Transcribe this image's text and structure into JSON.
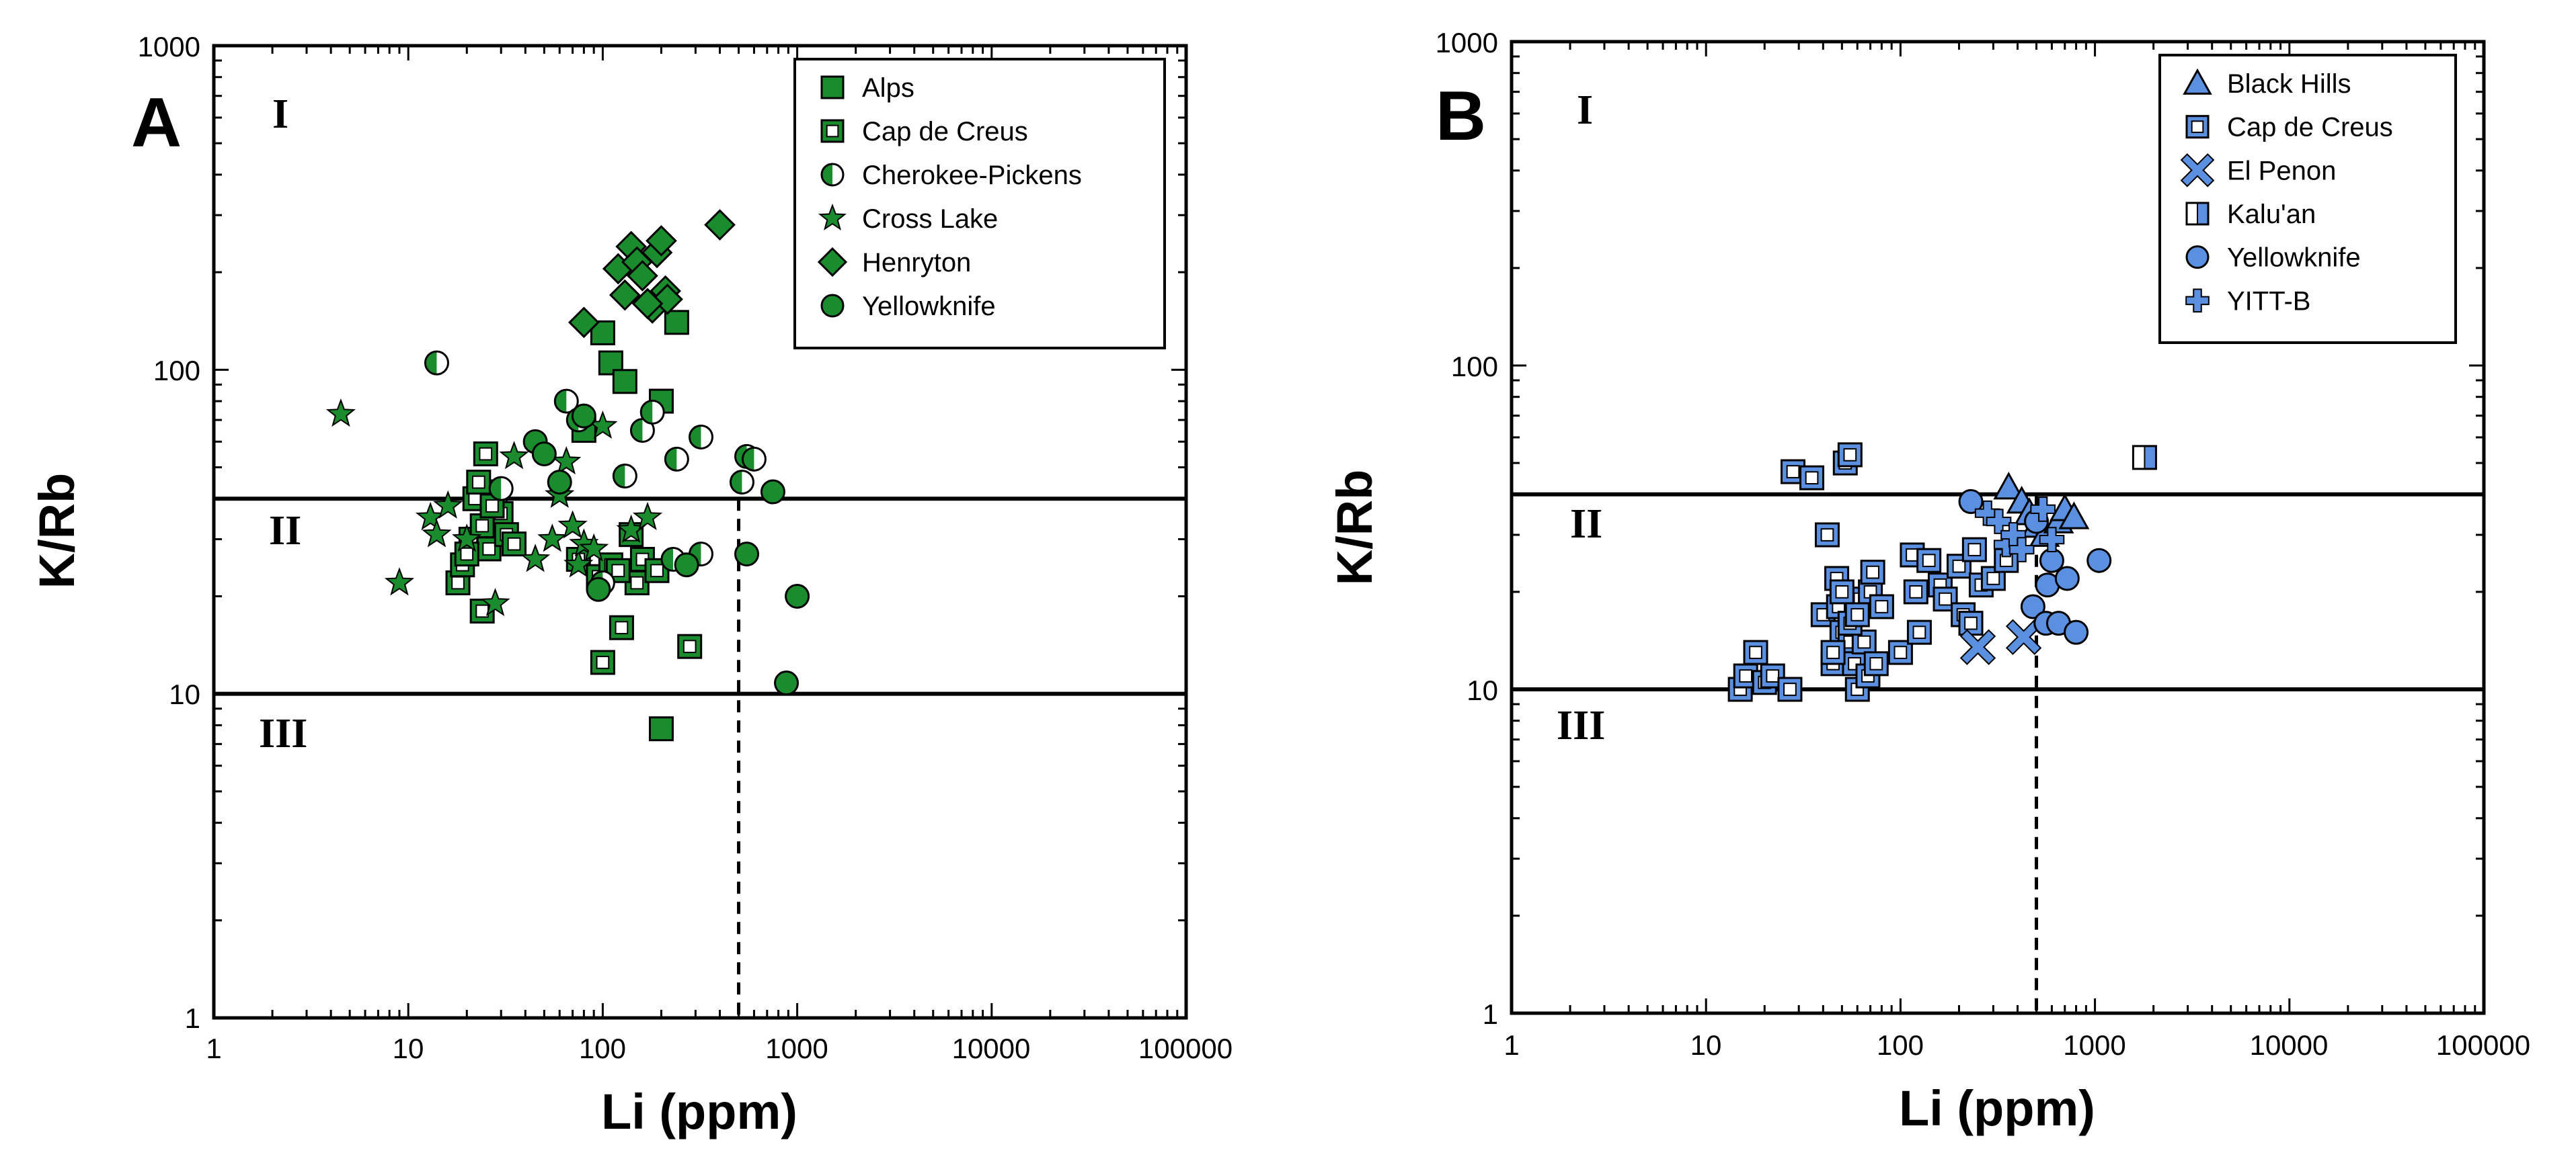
{
  "chart_data": [
    {
      "type": "scatter",
      "panel": "A",
      "title": "",
      "xlabel": "Li (ppm)",
      "ylabel": "K/Rb",
      "xscale": "log",
      "yscale": "log",
      "xlim": [
        1,
        100000
      ],
      "ylim": [
        1,
        1000
      ],
      "x_tick_labels": [
        "1",
        "10",
        "100",
        "1000",
        "10000",
        "100000"
      ],
      "y_tick_labels": [
        "1",
        "10",
        "100",
        "1000"
      ],
      "grid": false,
      "legend_position": "top-right",
      "region_labels": [
        "I",
        "II",
        "III"
      ],
      "boundaries": {
        "horizontal_kRb": [
          40,
          10
        ],
        "vertical_li_dashed": 500
      },
      "series": [
        {
          "name": "Alps",
          "marker": "square-filled",
          "color": "#1b8c2e",
          "x": [
            110,
            130,
            200,
            240,
            80,
            100,
            200
          ],
          "y": [
            105,
            92,
            80,
            140,
            65,
            130,
            7.8
          ]
        },
        {
          "name": "Cap de Creus",
          "marker": "square-dot",
          "color": "#1b8c2e",
          "x": [
            22,
            25,
            28,
            18,
            21,
            19,
            26,
            30,
            32,
            24,
            27,
            20,
            23,
            35,
            75,
            95,
            110,
            125,
            140,
            150,
            160,
            190,
            100,
            120,
            280,
            24
          ],
          "y": [
            40,
            55,
            42,
            22,
            30,
            25,
            28,
            36,
            31,
            33,
            38,
            27,
            45,
            29,
            26,
            23,
            25,
            16,
            31,
            22,
            26,
            24,
            12.5,
            24,
            14,
            18
          ]
        },
        {
          "name": "Cherokee-Pickens",
          "marker": "half-circle",
          "color": "#1b8c2e",
          "x": [
            14,
            65,
            160,
            240,
            320,
            550,
            600,
            520,
            320,
            230,
            30,
            75,
            180,
            130,
            100
          ],
          "y": [
            105,
            80,
            65,
            53,
            62,
            54,
            53,
            45,
            27,
            26,
            43,
            70,
            74,
            47,
            22
          ]
        },
        {
          "name": "Cross Lake",
          "marker": "star",
          "color": "#1b8c2e",
          "x": [
            4.5,
            9,
            13,
            14,
            16,
            20,
            28,
            35,
            45,
            55,
            60,
            65,
            70,
            75,
            80,
            90,
            100,
            140,
            170
          ],
          "y": [
            73,
            22,
            35,
            31,
            38,
            30,
            19,
            54,
            26,
            30,
            41,
            52,
            33,
            25,
            29,
            28,
            67,
            32,
            35
          ]
        },
        {
          "name": "Henryton",
          "marker": "diamond",
          "color": "#1b8c2e",
          "x": [
            80,
            120,
            140,
            150,
            160,
            170,
            180,
            190,
            200,
            210,
            215,
            130,
            170,
            400
          ],
          "y": [
            140,
            205,
            240,
            215,
            195,
            160,
            155,
            230,
            250,
            175,
            165,
            170,
            160,
            280
          ]
        },
        {
          "name": "Yellowknife",
          "marker": "circle",
          "color": "#1b8c2e",
          "x": [
            45,
            80,
            95,
            270,
            550,
            750,
            1000,
            880,
            50,
            60
          ],
          "y": [
            60,
            72,
            21,
            25,
            27,
            42,
            20,
            10.8,
            55,
            45
          ]
        }
      ]
    },
    {
      "type": "scatter",
      "panel": "B",
      "title": "",
      "xlabel": "Li (ppm)",
      "ylabel": "K/Rb",
      "xscale": "log",
      "yscale": "log",
      "xlim": [
        1,
        100000
      ],
      "ylim": [
        1,
        1000
      ],
      "x_tick_labels": [
        "1",
        "10",
        "100",
        "1000",
        "10000",
        "100000"
      ],
      "y_tick_labels": [
        "1",
        "10",
        "100",
        "1000"
      ],
      "grid": false,
      "legend_position": "top-right",
      "region_labels": [
        "I",
        "II",
        "III"
      ],
      "boundaries": {
        "horizontal_kRb": [
          40,
          10
        ],
        "vertical_li_dashed": 500
      },
      "series": [
        {
          "name": "Black Hills",
          "marker": "triangle",
          "color": "#5b8fe0",
          "x": [
            360,
            420,
            460,
            500,
            550,
            650,
            700,
            780
          ],
          "y": [
            42,
            38,
            35,
            32,
            30,
            33,
            36,
            34
          ]
        },
        {
          "name": "Cap de Creus",
          "marker": "square-dot",
          "color": "#5b8fe0",
          "x": [
            15,
            16,
            18,
            20,
            22,
            27,
            28,
            35,
            40,
            42,
            45,
            47,
            48,
            50,
            52,
            55,
            55,
            58,
            60,
            62,
            65,
            68,
            70,
            72,
            75,
            80,
            100,
            115,
            120,
            125,
            140,
            160,
            170,
            200,
            210,
            230,
            240,
            260,
            300,
            350,
            45,
            50,
            55,
            60
          ],
          "y": [
            10,
            11,
            13,
            10.5,
            11,
            10,
            47,
            45,
            17,
            30,
            12,
            22,
            18,
            15,
            50,
            53,
            14,
            12,
            10,
            19,
            14,
            11,
            20,
            23,
            12,
            18,
            13,
            26,
            20,
            15,
            25,
            21,
            19,
            24,
            17,
            16,
            27,
            21,
            22,
            25,
            13,
            20,
            16,
            17
          ]
        },
        {
          "name": "El Penon",
          "marker": "x",
          "color": "#5b8fe0",
          "x": [
            250,
            430
          ],
          "y": [
            13.5,
            14.5
          ]
        },
        {
          "name": "Kalu'an",
          "marker": "half-square",
          "color": "#5b8fe0",
          "x": [
            1800
          ],
          "y": [
            52
          ]
        },
        {
          "name": "Yellowknife",
          "marker": "circle",
          "color": "#5b8fe0",
          "x": [
            230,
            480,
            560,
            570,
            650,
            600,
            720,
            800,
            1050,
            500
          ],
          "y": [
            38,
            18,
            16,
            21,
            16,
            25,
            22,
            15,
            25,
            33
          ]
        },
        {
          "name": "YITT-B",
          "marker": "plus",
          "color": "#5b8fe0",
          "x": [
            280,
            320,
            350,
            380,
            420,
            540,
            600
          ],
          "y": [
            35,
            33,
            28,
            30,
            27,
            36,
            29
          ]
        }
      ]
    }
  ]
}
